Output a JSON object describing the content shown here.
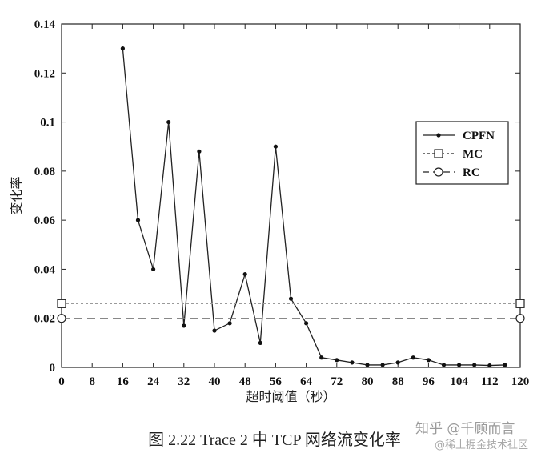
{
  "chart_data": {
    "type": "line",
    "xlabel": "超时阈值（秒）",
    "ylabel": "变化率",
    "xlim": [
      0,
      120
    ],
    "ylim": [
      0,
      0.14
    ],
    "xticks": [
      0,
      8,
      16,
      24,
      32,
      40,
      48,
      56,
      64,
      72,
      80,
      88,
      96,
      104,
      112,
      120
    ],
    "yticks": [
      0,
      0.02,
      0.04,
      0.06,
      0.08,
      0.1,
      0.12,
      0.14
    ],
    "xtick_labels": [
      "0",
      "8",
      "16",
      "24",
      "32",
      "40",
      "48",
      "56",
      "64",
      "72",
      "80",
      "88",
      "96",
      "104",
      "112",
      "120"
    ],
    "ytick_labels": [
      "0",
      "0.02",
      "0.04",
      "0.06",
      "0.08",
      "0.1",
      "0.12",
      "0.14"
    ],
    "grid": false,
    "legend_position": "right",
    "series": [
      {
        "name": "CPFN",
        "style": "solid",
        "marker": "dot",
        "color": "#222222",
        "x": [
          16,
          20,
          24,
          28,
          32,
          36,
          40,
          44,
          48,
          52,
          56,
          60,
          64,
          68,
          72,
          76,
          80,
          84,
          88,
          92,
          96,
          100,
          104,
          108,
          112,
          116
        ],
        "y": [
          0.13,
          0.06,
          0.04,
          0.1,
          0.017,
          0.088,
          0.015,
          0.018,
          0.038,
          0.01,
          0.09,
          0.028,
          0.018,
          0.004,
          0.003,
          0.002,
          0.001,
          0.001,
          0.002,
          0.004,
          0.003,
          0.001,
          0.001,
          0.001,
          0.0008,
          0.001
        ]
      },
      {
        "name": "MC",
        "style": "dotted",
        "marker": "square",
        "color": "#9a9a9a",
        "x": [
          0,
          120
        ],
        "y": [
          0.026,
          0.026
        ]
      },
      {
        "name": "RC",
        "style": "dashed",
        "marker": "circle",
        "color": "#777777",
        "x": [
          0,
          120
        ],
        "y": [
          0.02,
          0.02
        ]
      }
    ]
  },
  "caption": "图 2.22 Trace 2 中 TCP 网络流变化率",
  "watermark": {
    "line1": "知乎 @千顾而言",
    "line2": "@稀土掘金技术社区"
  }
}
